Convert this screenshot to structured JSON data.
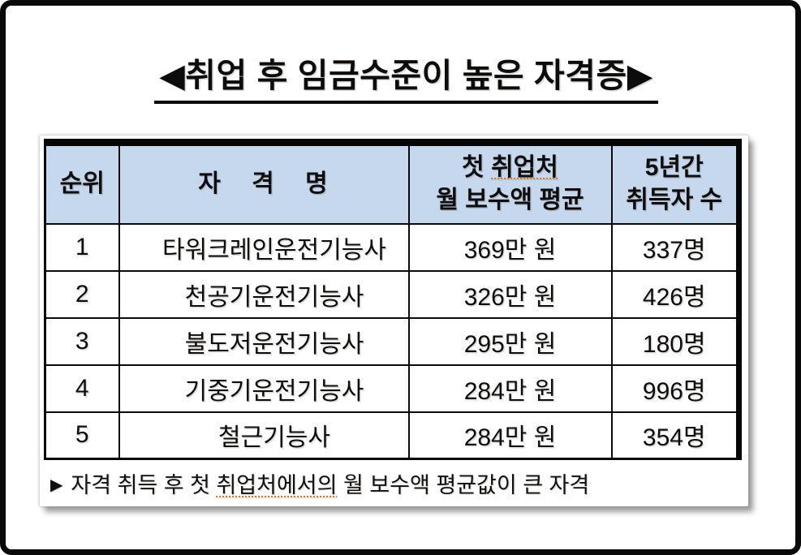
{
  "title": {
    "text": "◀취업 후 임금수준이 높은 자격증▶"
  },
  "table": {
    "header": {
      "rank": "순위",
      "name": "자 격 명",
      "pay_line1_prefix": "첫 ",
      "pay_line1_squiggle": "취업처",
      "pay_line2": "월 보수액 평균",
      "count_line1": "5년간",
      "count_line2": "취득자 수"
    },
    "rows": [
      {
        "rank": "1",
        "name": "타워크레인운전기능사",
        "pay": "369만 원",
        "count": "337명"
      },
      {
        "rank": "2",
        "name": "천공기운전기능사",
        "pay": "326만 원",
        "count": "426명"
      },
      {
        "rank": "3",
        "name": "불도저운전기능사",
        "pay": "295만 원",
        "count": "180명"
      },
      {
        "rank": "4",
        "name": "기중기운전기능사",
        "pay": "284만 원",
        "count": "996명"
      },
      {
        "rank": "5",
        "name": "철근기능사",
        "pay": "284만 원",
        "count": "354명"
      }
    ]
  },
  "footnote": {
    "marker": "▶",
    "prefix": "자격 취득 후 첫 ",
    "squiggle": "취업처에서의",
    "suffix": " 월 보수액 평균값이 큰 자격"
  },
  "colors": {
    "header_bg": "#c5d8ee",
    "border": "#050505",
    "squiggle_underline": "#e8740c",
    "frame": "#0a0a0a"
  }
}
